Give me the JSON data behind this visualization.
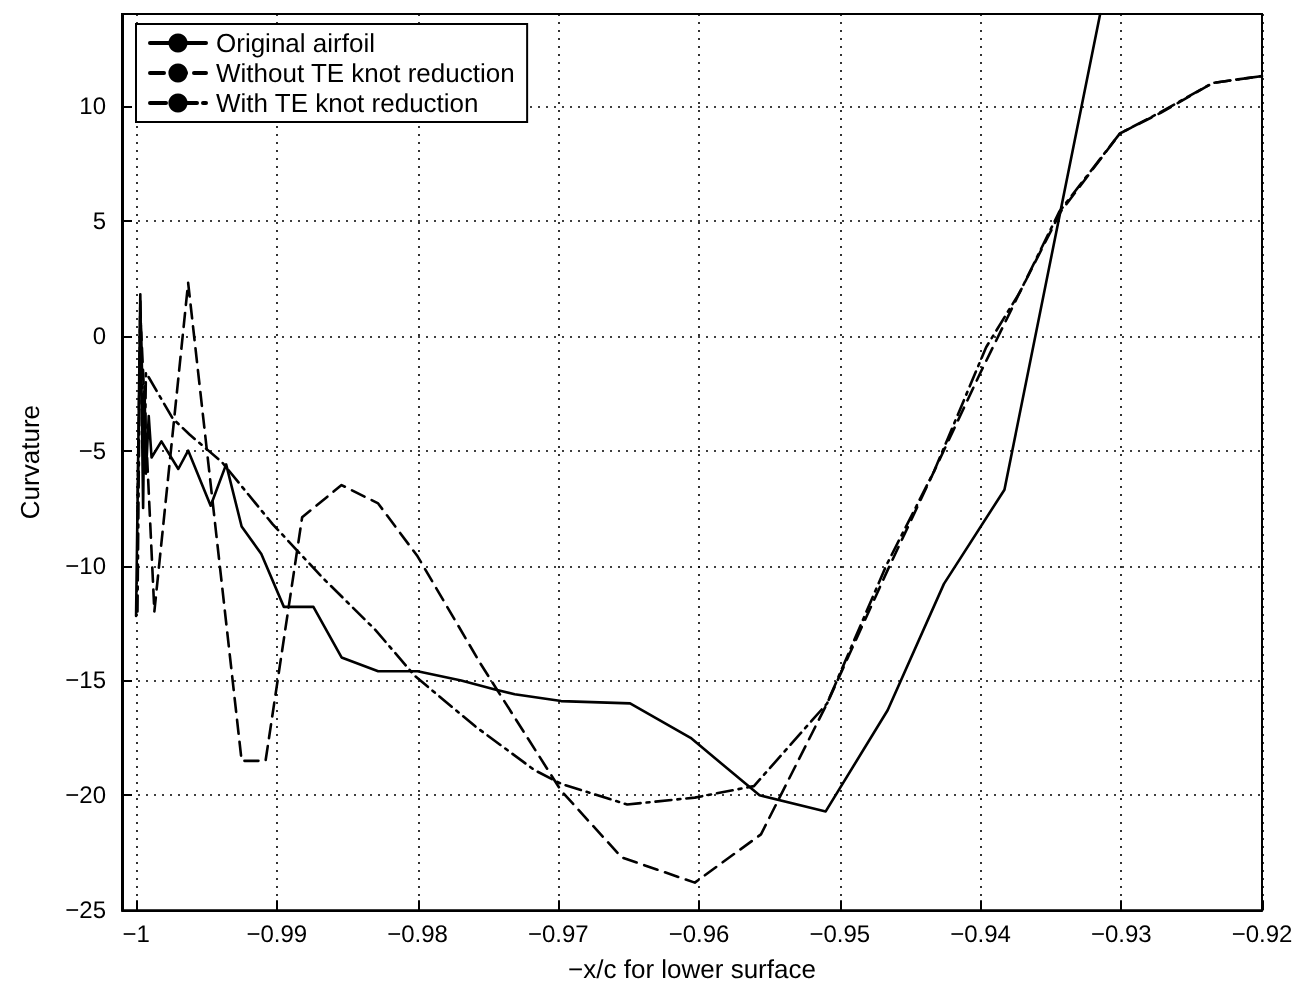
{
  "chart_data": {
    "type": "line",
    "xlabel": "−x/c for lower surface",
    "ylabel": "Curvature",
    "xlim": [
      -1.001,
      -0.92
    ],
    "xticks": [
      -1,
      -0.99,
      -0.98,
      -0.97,
      -0.96,
      -0.95,
      -0.94,
      -0.93,
      -0.92
    ],
    "ylim": [
      -25,
      14
    ],
    "yticks": [
      -25,
      -20,
      -15,
      -10,
      -5,
      0,
      5,
      10
    ],
    "grid": true,
    "legend": "top left",
    "marker": "none",
    "series": [
      {
        "name": "Original airfoil",
        "color": "#000000",
        "line_style": "solid",
        "x": [
          -1.0,
          -0.9997,
          -0.9995,
          -0.9994,
          -0.9993,
          -0.9991,
          -0.9989,
          -0.9982,
          -0.997,
          -0.9963,
          -0.9947,
          -0.9936,
          -0.9925,
          -0.9911,
          -0.9895,
          -0.9874,
          -0.9854,
          -0.9828,
          -0.98,
          -0.9769,
          -0.9745,
          -0.9731,
          -0.9698,
          -0.9649,
          -0.9606,
          -0.9557,
          -0.951,
          -0.9466,
          -0.9426,
          -0.9383,
          -0.9315
        ],
        "values": [
          -12.2,
          1.8,
          -7.5,
          -2.2,
          -6.0,
          -3.5,
          -5.3,
          -4.6,
          -5.8,
          -5.0,
          -7.4,
          -5.6,
          -8.3,
          -9.5,
          -11.8,
          -11.8,
          -14.0,
          -14.6,
          -14.6,
          -15.0,
          -15.4,
          -15.6,
          -15.9,
          -16.0,
          -17.5,
          -20.0,
          -20.7,
          -16.3,
          -10.8,
          -6.7,
          14
        ]
      },
      {
        "name": "Without TE knot reduction",
        "color": "#000000",
        "line_style": "dashed",
        "x": [
          -0.9999,
          -0.9997,
          -0.9987,
          -0.9963,
          -0.9925,
          -0.9908,
          -0.9882,
          -0.9854,
          -0.9828,
          -0.98,
          -0.9755,
          -0.9698,
          -0.9655,
          -0.9603,
          -0.9556,
          -0.9509,
          -0.9466,
          -0.9433,
          -0.94,
          -0.9372,
          -0.9343,
          -0.9301,
          -0.9272,
          -0.9235,
          -0.92
        ],
        "values": [
          -8,
          1.0,
          -12.0,
          2.3,
          -18.5,
          -18.5,
          -7.9,
          -6.5,
          -7.3,
          -9.6,
          -14.3,
          -19.8,
          -22.7,
          -23.8,
          -21.7,
          -16.0,
          -10.2,
          -5.9,
          -1.6,
          1.9,
          5.4,
          8.8,
          9.7,
          11.0,
          11.3
        ]
      },
      {
        "name": "With TE knot reduction",
        "color": "#000000",
        "line_style": "dashdot",
        "x": [
          -0.9999,
          -0.9997,
          -0.9994,
          -0.9993,
          -0.9974,
          -0.9962,
          -0.9939,
          -0.9903,
          -0.9868,
          -0.983,
          -0.9802,
          -0.9759,
          -0.9717,
          -0.9698,
          -0.9651,
          -0.9603,
          -0.9561,
          -0.9509,
          -0.9467,
          -0.9433,
          -0.9396,
          -0.9372,
          -0.9344,
          -0.9301,
          -0.9273,
          -0.9235,
          -0.92
        ],
        "values": [
          -12.0,
          1.5,
          -6.0,
          -1.6,
          -3.6,
          -4.3,
          -5.5,
          -8.2,
          -10.5,
          -12.8,
          -14.8,
          -17.0,
          -18.9,
          -19.5,
          -20.4,
          -20.1,
          -19.6,
          -16.0,
          -10.0,
          -5.9,
          -0.5,
          1.9,
          5.4,
          8.8,
          9.7,
          11.0,
          11.3
        ]
      }
    ]
  }
}
